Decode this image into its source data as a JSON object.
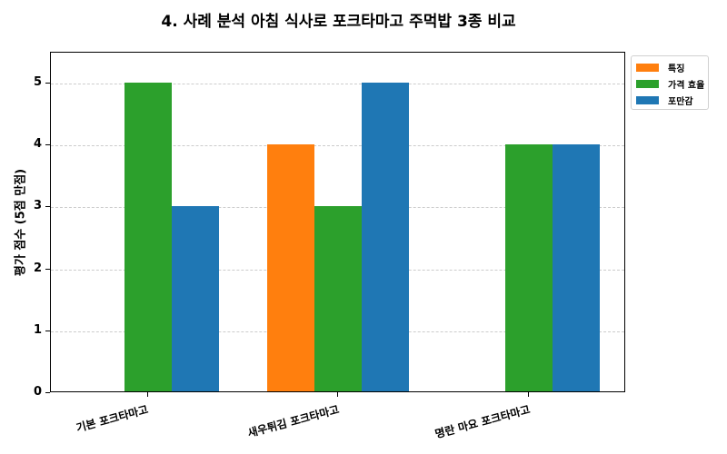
{
  "chart_data": {
    "type": "bar",
    "title": "4.  사례 분석 아침 식사로 포크타마고 주먹밥 3종 비교",
    "xlabel": "",
    "ylabel": "평가 점수 (5점 만점)",
    "ylim": [
      0,
      5.5
    ],
    "yticks": [
      "0",
      "1",
      "2",
      "3",
      "4",
      "5"
    ],
    "grid": true,
    "legend_position": "outside upper right",
    "categories": [
      "기본 포크타마고",
      "새우튀김 포크타마고",
      "명란 마요 포크타마고"
    ],
    "series": [
      {
        "name": "특징",
        "color": "#ff7f0e",
        "values": [
          0,
          4,
          0
        ]
      },
      {
        "name": "가격 효율",
        "color": "#2ca02c",
        "values": [
          5,
          3,
          4
        ]
      },
      {
        "name": "포만감",
        "color": "#1f77b4",
        "values": [
          3,
          5,
          4
        ]
      }
    ]
  }
}
